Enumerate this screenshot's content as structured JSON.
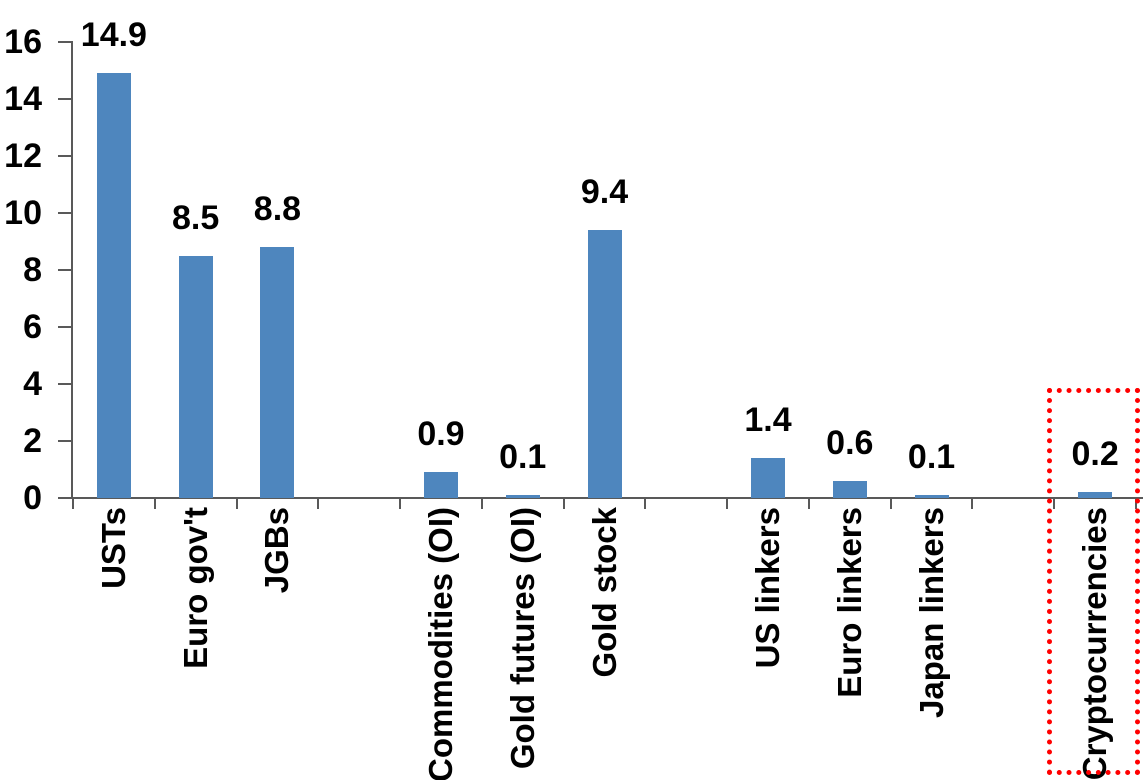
{
  "chart_data": {
    "type": "bar",
    "title": "",
    "xlabel": "",
    "ylabel": "",
    "categories": [
      "USTs",
      "Euro gov't",
      "JGBs",
      "Commodities (OI)",
      "Gold futures (OI)",
      "Gold stock",
      "US linkers",
      "Euro linkers",
      "Japan linkers",
      "Cryptocurrencies"
    ],
    "values": [
      14.9,
      8.5,
      8.8,
      0.9,
      0.1,
      9.4,
      1.4,
      0.6,
      0.1,
      0.2
    ],
    "value_labels": [
      "14.9",
      "8.5",
      "8.8",
      "0.9",
      "0.1",
      "9.4",
      "1.4",
      "0.6",
      "0.1",
      "0.2"
    ],
    "slots": [
      0,
      1,
      2,
      4,
      5,
      6,
      8,
      9,
      10,
      12
    ],
    "total_slots": 13,
    "ylim": [
      0,
      16
    ],
    "ytick_labels": [
      "0",
      "2",
      "4",
      "6",
      "8",
      "10",
      "12",
      "14",
      "16"
    ],
    "grid": false,
    "legend": false,
    "bar_color": "#4E86BE",
    "axis_color": "#595959",
    "text_color": "#000000",
    "highlight": {
      "category": "Cryptocurrencies",
      "box_color": "#FF0000",
      "style": "dotted"
    }
  }
}
